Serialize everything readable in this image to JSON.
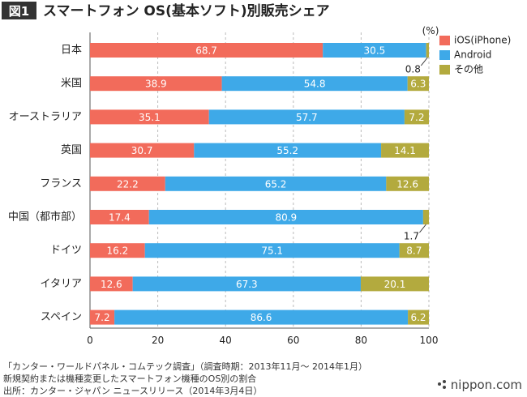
{
  "figure_label": "図1",
  "chart_data": {
    "type": "bar",
    "orientation": "horizontal",
    "stacked": true,
    "title": "スマートフォン OS(基本ソフト)別販売シェア",
    "unit": "(%)",
    "categories": [
      "日本",
      "米国",
      "オーストラリア",
      "英国",
      "フランス",
      "中国（都市部）",
      "ドイツ",
      "イタリア",
      "スペイン"
    ],
    "series": [
      {
        "name": "iOS(iPhone)",
        "color": "#f26b5b",
        "values": [
          68.7,
          38.9,
          35.1,
          30.7,
          22.2,
          17.4,
          16.2,
          12.6,
          7.2
        ]
      },
      {
        "name": "Android",
        "color": "#3ea9e8",
        "values": [
          30.5,
          54.8,
          57.7,
          55.2,
          65.2,
          80.9,
          75.1,
          67.3,
          86.6
        ]
      },
      {
        "name": "その他",
        "color": "#b3aa3e",
        "values": [
          0.8,
          6.3,
          7.2,
          14.1,
          12.6,
          1.7,
          8.7,
          20.1,
          6.2
        ]
      }
    ],
    "xlim": [
      0,
      100
    ],
    "xticks": [
      0,
      20,
      40,
      60,
      80,
      100
    ],
    "grid": true,
    "legend": "top-right"
  },
  "footnote": {
    "line1": "「カンター・ワールドパネル・コムテック調査」（調査時期：2013年11月～ 2014年1月）",
    "line2": "新規契約または機種変更したスマートフォン機種のOS別の割合",
    "line3": "出所：カンター・ジャパン ニュースリリース（2014年3月4日）"
  },
  "brand": "nippon.com"
}
